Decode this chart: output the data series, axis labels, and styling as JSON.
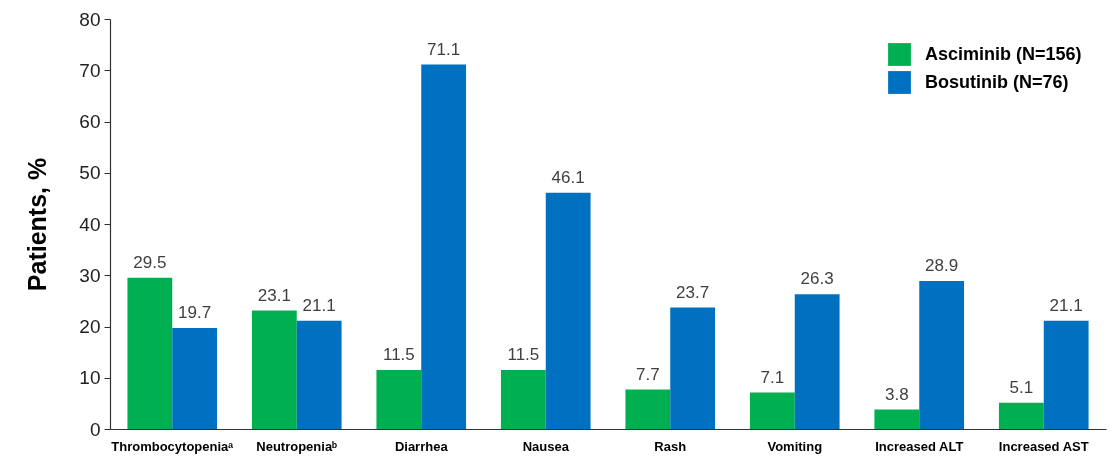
{
  "chart_data": {
    "type": "bar",
    "ylabel": "Patients, %",
    "categories": [
      "Thrombocytopeniaᵃ",
      "Neutropeniaᵇ",
      "Diarrhea",
      "Nausea",
      "Rash",
      "Vomiting",
      "Increased ALT",
      "Increased AST"
    ],
    "series": [
      {
        "name": "Asciminib (N=156)",
        "color": "#00b050",
        "values": [
          29.5,
          23.1,
          11.5,
          11.5,
          7.7,
          7.1,
          3.8,
          5.1
        ]
      },
      {
        "name": "Bosutinib (N=76)",
        "color": "#0070c0",
        "values": [
          19.7,
          21.1,
          71.1,
          46.1,
          23.7,
          26.3,
          28.9,
          21.1
        ]
      }
    ],
    "ylim": [
      0,
      80
    ],
    "yticks": [
      0,
      10,
      20,
      30,
      40,
      50,
      60,
      70,
      80
    ],
    "grid": false,
    "legend": "top right",
    "data_labels": true
  }
}
